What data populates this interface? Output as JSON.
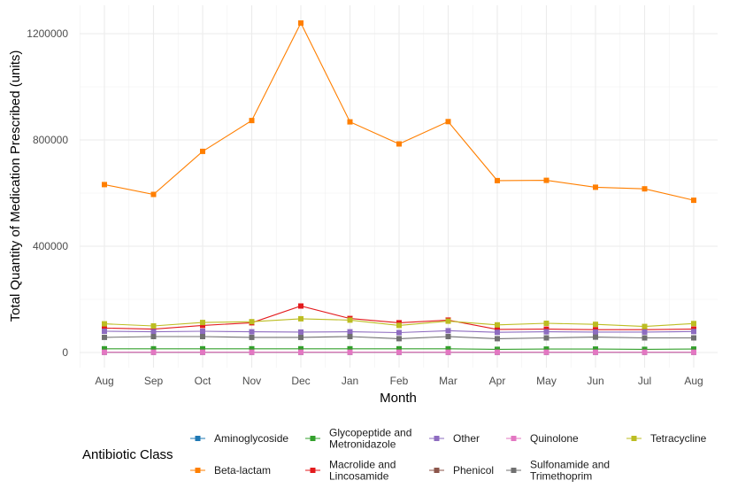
{
  "chart_data": {
    "type": "line",
    "title": "",
    "xlabel": "Month",
    "ylabel": "Total Quantity of Medication Prescribed (units)",
    "categories": [
      "Aug",
      "Sep",
      "Oct",
      "Nov",
      "Dec",
      "Jan",
      "Feb",
      "Mar",
      "Apr",
      "May",
      "Jun",
      "Jul",
      "Aug"
    ],
    "ylim": [
      -45000,
      1300000
    ],
    "yticks": [
      0,
      400000,
      800000,
      1200000
    ],
    "ytick_labels": [
      "0",
      "400000",
      "800000",
      "1200000"
    ],
    "grid": true,
    "legend": {
      "title": "Antibiotic Class",
      "position": "bottom"
    },
    "series": [
      {
        "name": "Aminoglycoside",
        "color": "#1f78b4",
        "values": [
          1000,
          1000,
          1000,
          1000,
          1000,
          1000,
          1000,
          1000,
          1000,
          1000,
          1000,
          1000,
          1000
        ]
      },
      {
        "name": "Beta-lactam",
        "color": "#ff7f00",
        "values": [
          632000,
          595000,
          757000,
          873000,
          1240000,
          868000,
          785000,
          869000,
          647000,
          648000,
          622000,
          616000,
          573000
        ]
      },
      {
        "name": "Glycopeptide and\nMetronidazole",
        "color": "#33a02c",
        "values": [
          14000,
          14000,
          14000,
          14000,
          14000,
          14000,
          14000,
          14000,
          12000,
          13000,
          13000,
          12000,
          13000
        ]
      },
      {
        "name": "Macrolide and\nLincosamide",
        "color": "#e31a1c",
        "values": [
          92000,
          88000,
          102000,
          112000,
          175000,
          128000,
          112000,
          122000,
          87000,
          88000,
          86000,
          86000,
          88000
        ]
      },
      {
        "name": "Other",
        "color": "#8e6cc0",
        "values": [
          80000,
          78000,
          80000,
          78000,
          77000,
          78000,
          75000,
          82000,
          76000,
          78000,
          77000,
          77000,
          79000
        ]
      },
      {
        "name": "Phenicol",
        "color": "#8c564b",
        "values": [
          1000,
          1000,
          1000,
          1000,
          1000,
          1000,
          1000,
          1000,
          1000,
          1000,
          1000,
          1000,
          1000
        ]
      },
      {
        "name": "Quinolone",
        "color": "#e377c2",
        "values": [
          1000,
          1000,
          1000,
          1000,
          1000,
          1000,
          1000,
          1000,
          1000,
          1000,
          1000,
          1000,
          1000
        ]
      },
      {
        "name": "Sulfonamide and\nTrimethoprim",
        "color": "#707070",
        "values": [
          57000,
          60000,
          60000,
          57000,
          57000,
          60000,
          52000,
          60000,
          52000,
          55000,
          58000,
          55000,
          55000
        ]
      },
      {
        "name": "Tetracycline",
        "color": "#bcbd22",
        "values": [
          108000,
          100000,
          113000,
          116000,
          127000,
          122000,
          102000,
          118000,
          104000,
          110000,
          106000,
          98000,
          109000
        ]
      }
    ]
  }
}
